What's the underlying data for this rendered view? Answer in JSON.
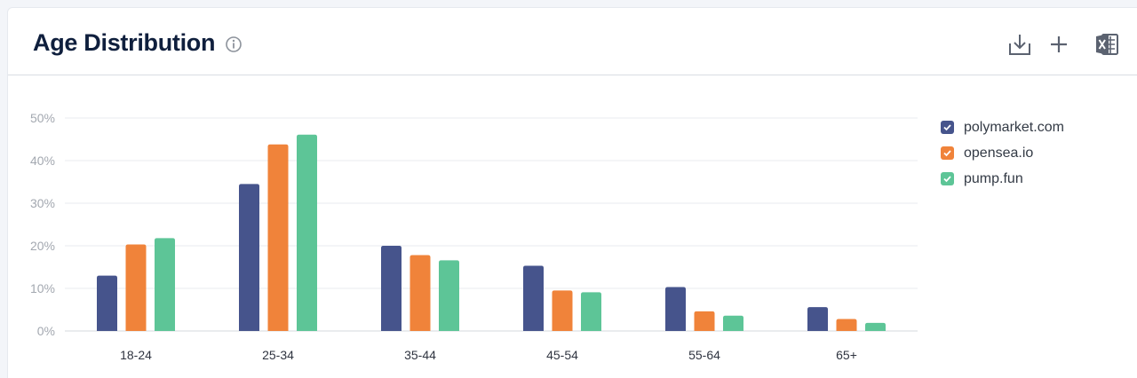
{
  "header": {
    "title": "Age Distribution"
  },
  "icons": {
    "info": "info-icon",
    "download": "download-icon",
    "add": "plus-icon",
    "excel": "excel-icon"
  },
  "colors": {
    "polymarket": "#46548c",
    "opensea": "#f0833a",
    "pumpfun": "#5dc597",
    "grid": "#e8ebef",
    "axis_text": "#a3a8b0",
    "title": "#0f1f3d"
  },
  "chart_data": {
    "type": "bar",
    "categories": [
      "18-24",
      "25-34",
      "35-44",
      "45-54",
      "55-64",
      "65+"
    ],
    "series": [
      {
        "name": "polymarket.com",
        "values": [
          13,
          34.5,
          20,
          15.3,
          10.3,
          5.6
        ]
      },
      {
        "name": "opensea.io",
        "values": [
          20.3,
          43.8,
          17.8,
          9.5,
          4.6,
          2.8
        ]
      },
      {
        "name": "pump.fun",
        "values": [
          21.8,
          46.1,
          16.6,
          9.1,
          3.6,
          1.9
        ]
      }
    ],
    "ylim": [
      0,
      50
    ],
    "yticks": [
      "0%",
      "10%",
      "20%",
      "30%",
      "40%",
      "50%"
    ],
    "grid": true,
    "legend": "right"
  }
}
